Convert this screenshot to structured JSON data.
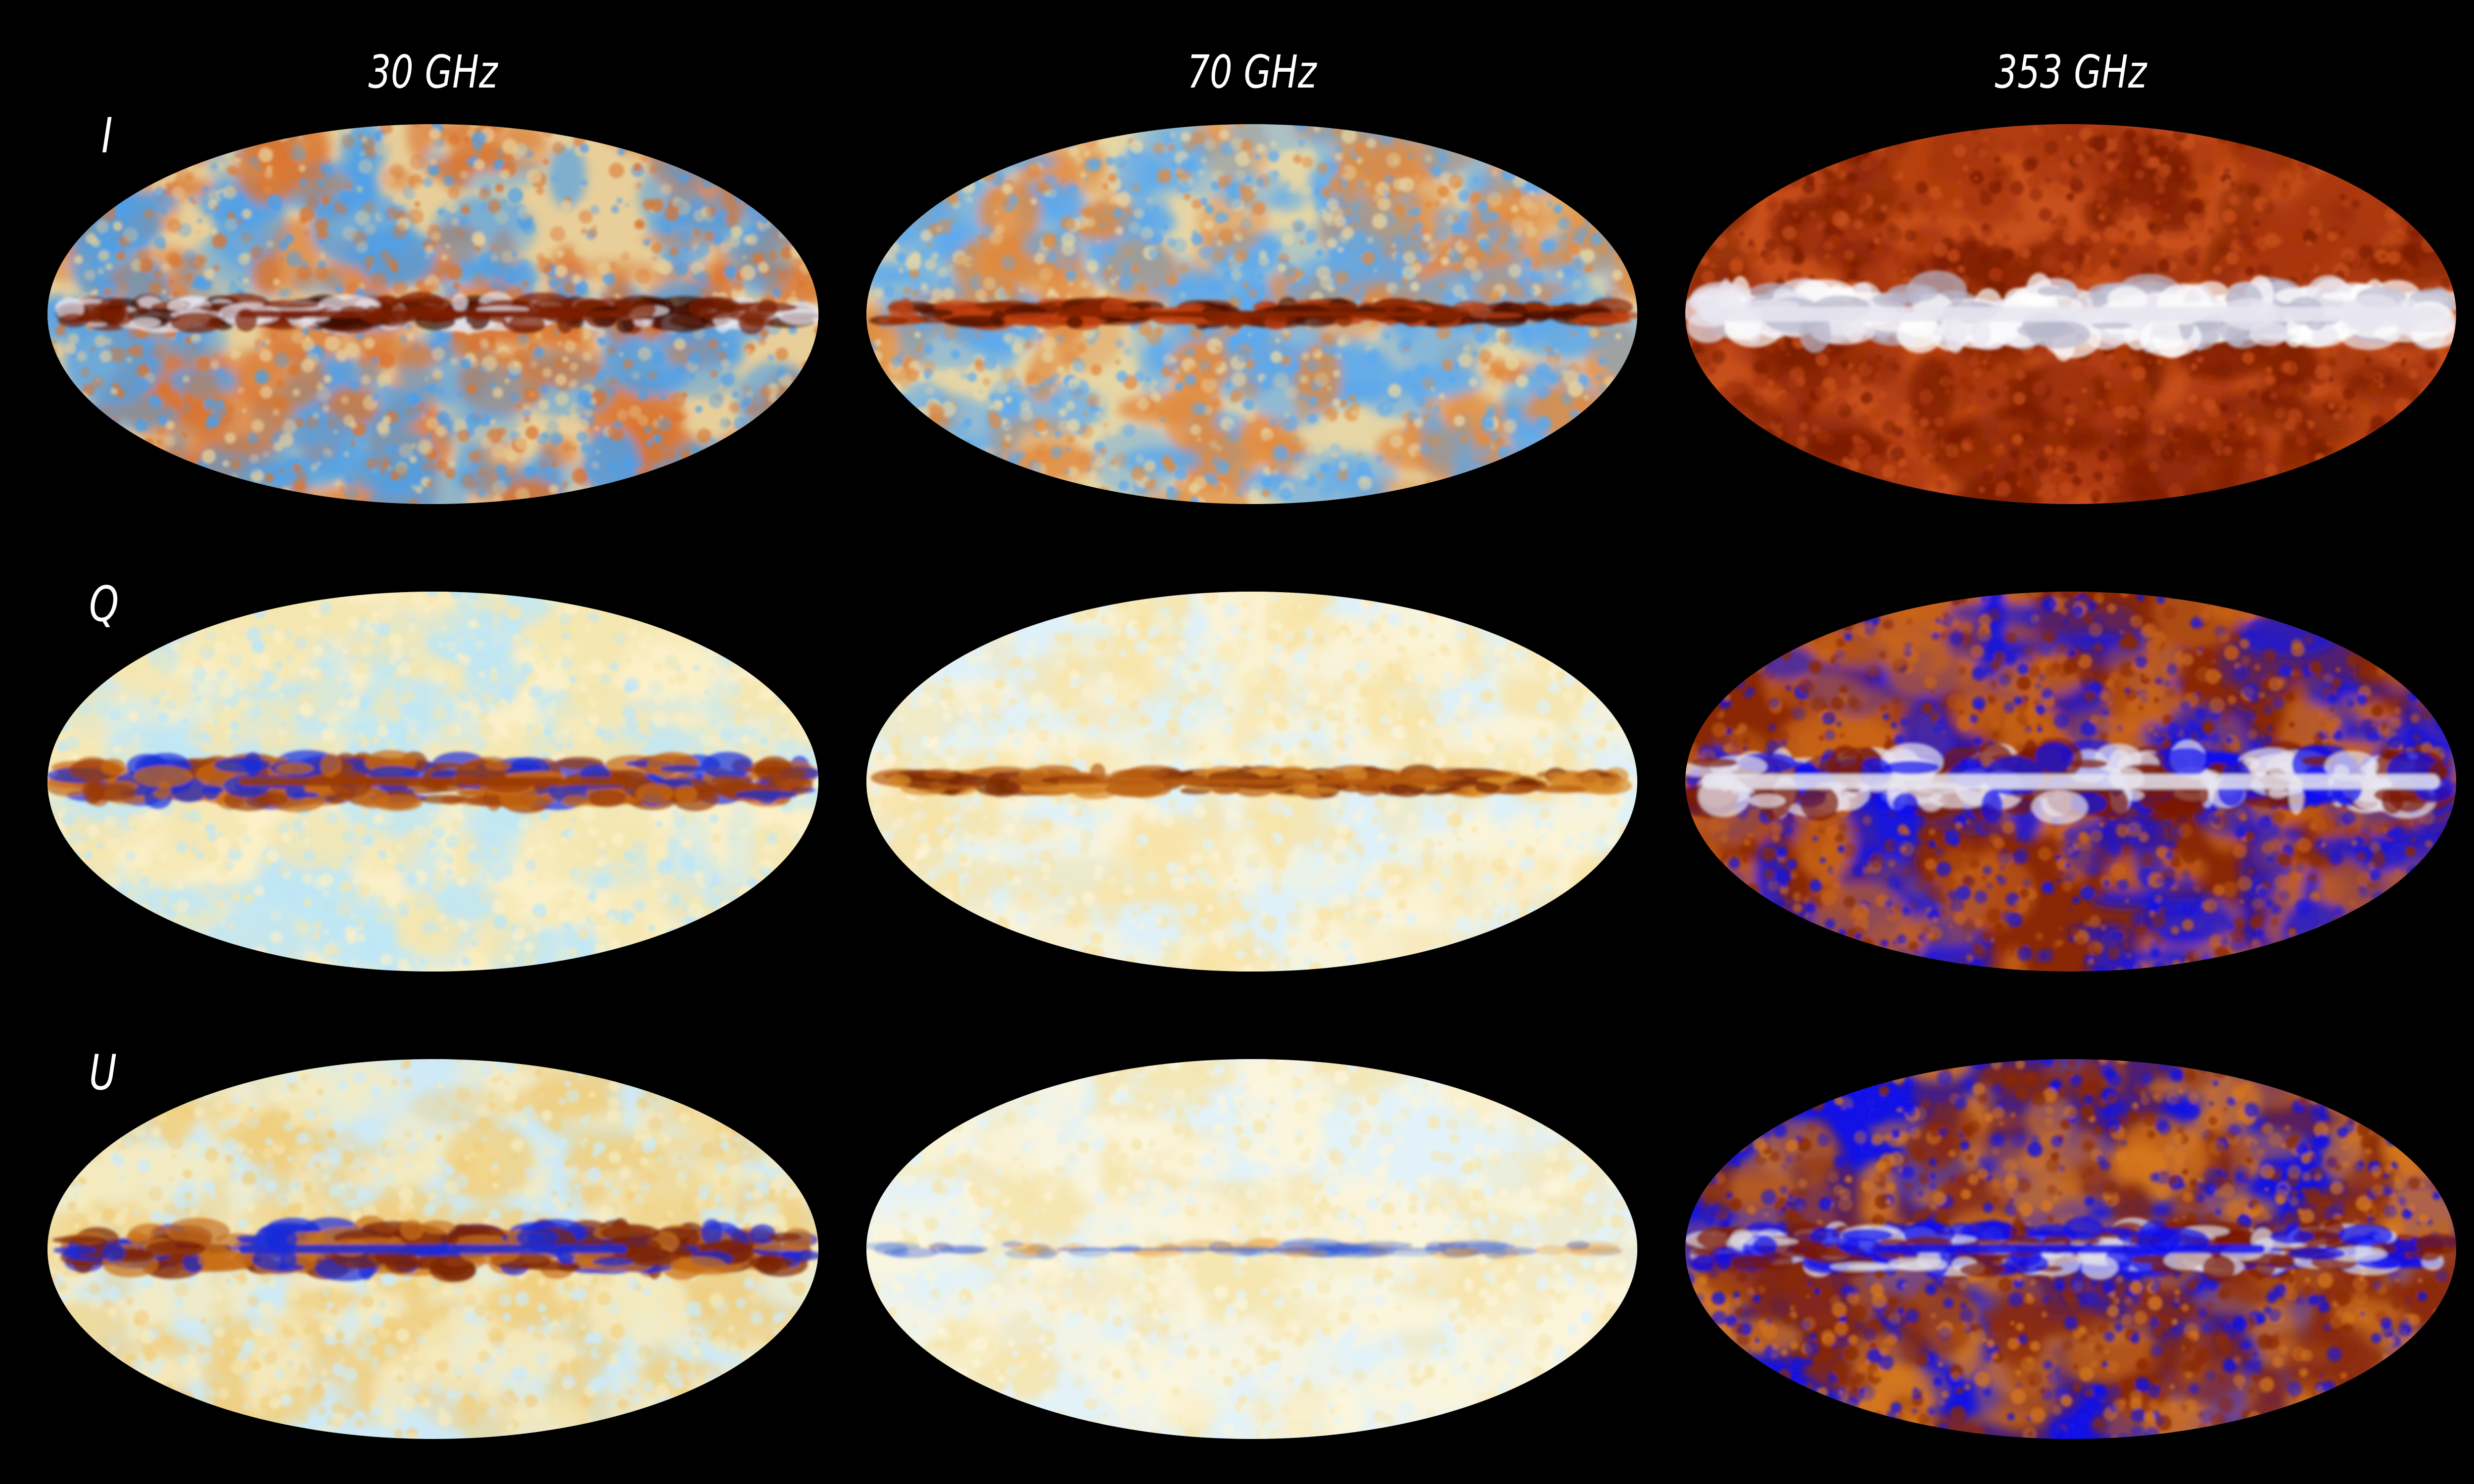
{
  "columns": [
    {
      "label": "30 GHz"
    },
    {
      "label": "70 GHz"
    },
    {
      "label": "353 GHz"
    }
  ],
  "rows": [
    {
      "label": "I"
    },
    {
      "label": "Q"
    },
    {
      "label": "U"
    }
  ],
  "maps": [
    {
      "name": "map-30ghz-i",
      "palette": "planck-i",
      "base": [
        "#4d9fe8",
        "#e8cf9a",
        "#d9752f"
      ],
      "band": [
        "#7b1f00",
        "#3a0a00",
        "#e8e6f0"
      ],
      "band_style": "thin-bright"
    },
    {
      "name": "map-70ghz-i",
      "palette": "planck-i",
      "base": [
        "#5aa8ee",
        "#e6d6a6",
        "#e08a3e"
      ],
      "band": [
        "#8a2500",
        "#4a1000",
        "#c04010"
      ],
      "band_style": "thin-dark"
    },
    {
      "name": "map-353ghz-i",
      "palette": "planck-i",
      "base": [
        "#a8360c",
        "#c8501c",
        "#7a1c05"
      ],
      "band": [
        "#e8e6f0",
        "#b8b8cc",
        "#ffffff"
      ],
      "band_style": "wide-bright"
    },
    {
      "name": "map-30ghz-q",
      "palette": "planck-pol",
      "base": [
        "#f4e6b0",
        "#fbf0c8",
        "#bfe6f5"
      ],
      "band": [
        "#9a3a05",
        "#1a2fd8",
        "#c96a12"
      ],
      "band_style": "mixed"
    },
    {
      "name": "map-70ghz-q",
      "palette": "planck-pol",
      "base": [
        "#fbf3d6",
        "#dff1f8",
        "#f8e3a6"
      ],
      "band": [
        "#b55a10",
        "#d88a2a",
        "#7a2a05"
      ],
      "band_style": "thin-dark"
    },
    {
      "name": "map-353ghz-q",
      "palette": "planck-pol",
      "base": [
        "#c8641a",
        "#8a2806",
        "#1616e0"
      ],
      "band": [
        "#e8e6f0",
        "#7a1a05",
        "#1010ee"
      ],
      "band_style": "wide-bright"
    },
    {
      "name": "map-30ghz-u",
      "palette": "planck-pol",
      "base": [
        "#f6ebc0",
        "#cfeaf6",
        "#f0cf80"
      ],
      "band": [
        "#1a2ad8",
        "#7a2305",
        "#c97018"
      ],
      "band_style": "mixed"
    },
    {
      "name": "map-70ghz-u",
      "palette": "planck-pol",
      "base": [
        "#fbf5dc",
        "#e3f2f8",
        "#f6e5ae"
      ],
      "band": [
        "#2a50d8",
        "#e8a040",
        "#5a8ae0"
      ],
      "band_style": "faint"
    },
    {
      "name": "map-353ghz-u",
      "palette": "planck-pol",
      "base": [
        "#d6781e",
        "#1212e6",
        "#8a2a08"
      ],
      "band": [
        "#1010ee",
        "#7a1a05",
        "#e0e0ea"
      ],
      "band_style": "mixed"
    }
  ]
}
